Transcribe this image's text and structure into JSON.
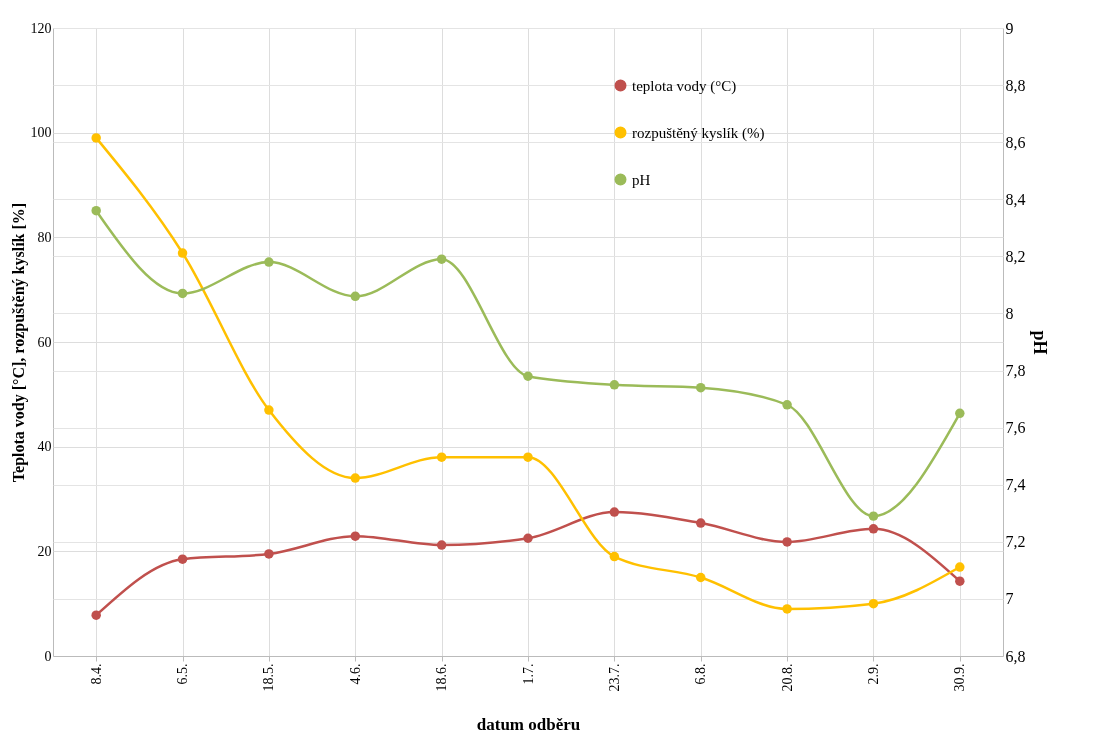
{
  "chart_data": {
    "type": "line",
    "categories": [
      "8.4.",
      "6.5.",
      "18.5.",
      "4.6.",
      "18.6.",
      "1.7.",
      "23.7.",
      "6.8.",
      "20.8.",
      "2.9.",
      "30.9."
    ],
    "series": [
      {
        "name": "teplota vody (°C)",
        "color": "#c0504d",
        "values": [
          7.8,
          18.5,
          19.5,
          22.9,
          21.2,
          22.5,
          27.5,
          25.4,
          21.8,
          24.3,
          14.3
        ]
      },
      {
        "name": "rozpuštěný kyslík (%)",
        "color": "#ffc000",
        "values": [
          99,
          77,
          47,
          34,
          38,
          38,
          19,
          15,
          9,
          10,
          17
        ]
      },
      {
        "name": "pH",
        "color": "#9bbb59",
        "axis": "y2",
        "values": [
          8.36,
          8.07,
          8.18,
          8.06,
          8.19,
          7.78,
          7.75,
          7.74,
          7.68,
          7.29,
          7.65
        ]
      }
    ],
    "xlabel": "datum odběru",
    "ylabel": "Teplota vody [°C], rozpuštěný kyslík [%]",
    "y2label": "pH",
    "ylim": [
      0,
      120
    ],
    "yticks": [
      0,
      20,
      40,
      60,
      80,
      100,
      120
    ],
    "y2lim": [
      6.8,
      9
    ],
    "y2ticks": [
      {
        "value": 6.8,
        "label": "6,8"
      },
      7,
      {
        "value": 7.2,
        "label": "7,2"
      },
      {
        "value": 7.4,
        "label": "7,4"
      },
      {
        "value": 7.6,
        "label": "7,6"
      },
      {
        "value": 7.8,
        "label": "7,8"
      },
      8,
      {
        "value": 8.2,
        "label": "8,2"
      },
      {
        "value": 8.4,
        "label": "8,4"
      },
      {
        "value": 8.6,
        "label": "8,6"
      },
      {
        "value": 8.8,
        "label": "8,8"
      },
      9
    ],
    "grid": true,
    "legend": "top right",
    "marker": "circle",
    "line_style": "solid"
  }
}
